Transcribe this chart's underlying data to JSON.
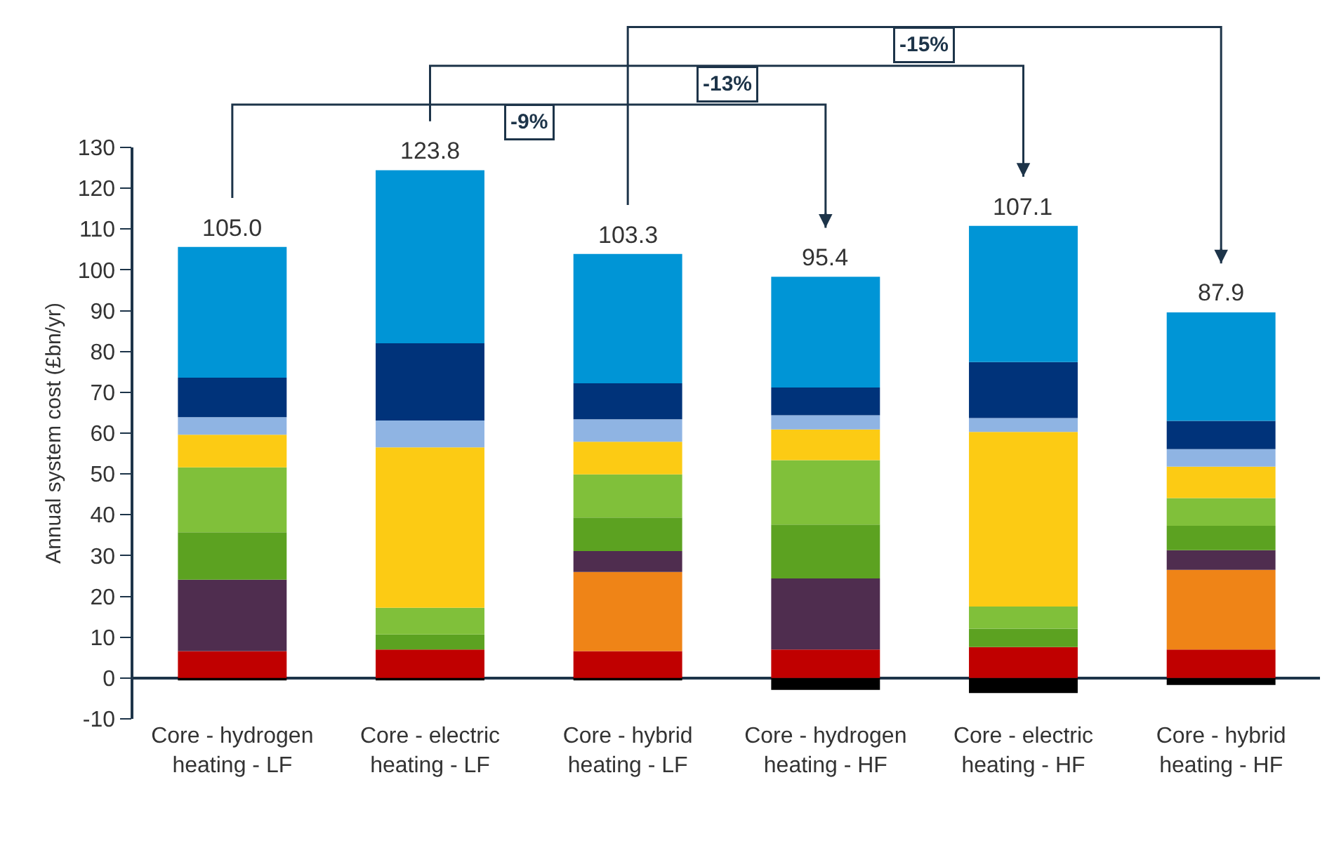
{
  "chart_data": {
    "type": "bar",
    "stacked": true,
    "ylabel": "Annual system cost (£bn/yr)",
    "categories": [
      "Core - hydrogen heating - LF",
      "Core - electric heating - LF",
      "Core - hybrid heating - LF",
      "Core - hydrogen heating - HF",
      "Core - electric heating - HF",
      "Core - hybrid heating - HF"
    ],
    "series": [
      {
        "color": "#000000",
        "values": [
          -0.6,
          -0.6,
          -0.6,
          -2.9,
          -3.7,
          -1.7
        ]
      },
      {
        "color": "#c00000",
        "values": [
          6.6,
          7.0,
          6.6,
          7.0,
          7.6,
          7.0
        ]
      },
      {
        "color": "#ef8417",
        "values": [
          0,
          0,
          19.4,
          0,
          0,
          19.5
        ]
      },
      {
        "color": "#4f2d4f",
        "values": [
          17.5,
          0,
          5.1,
          17.4,
          0,
          4.8
        ]
      },
      {
        "color": "#5ca221",
        "values": [
          11.6,
          3.7,
          8.2,
          13.2,
          4.5,
          6.0
        ]
      },
      {
        "color": "#80c03a",
        "values": [
          15.9,
          6.5,
          10.6,
          15.8,
          5.4,
          6.8
        ]
      },
      {
        "color": "#fccb14",
        "values": [
          8.0,
          39.3,
          8.0,
          7.5,
          42.8,
          7.7
        ]
      },
      {
        "color": "#8fb4e3",
        "values": [
          4.3,
          6.6,
          5.5,
          3.5,
          3.4,
          4.3
        ]
      },
      {
        "color": "#00337a",
        "values": [
          9.7,
          18.9,
          8.8,
          6.8,
          13.7,
          6.9
        ]
      },
      {
        "color": "#0095d6",
        "values": [
          32.0,
          42.4,
          31.7,
          27.1,
          33.4,
          26.6
        ]
      }
    ],
    "totals": [
      "105.0",
      "123.8",
      "103.3",
      "95.4",
      "107.1",
      "87.9"
    ],
    "annotations": [
      "-9%",
      "-13%",
      "-15%"
    ],
    "ylim": [
      -10,
      130
    ],
    "yticks": [
      -10,
      0,
      10,
      20,
      30,
      40,
      50,
      60,
      70,
      80,
      90,
      100,
      110,
      120,
      130
    ],
    "line_style": "solid"
  }
}
